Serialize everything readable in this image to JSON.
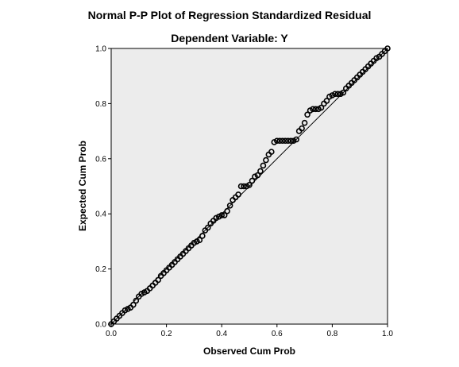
{
  "chart_data": {
    "type": "scatter",
    "title": "Normal P-P Plot of Regression Standardized Residual",
    "subtitle": "Dependent Variable: Y",
    "xlabel": "Observed Cum Prob",
    "ylabel": "Expected Cum Prob",
    "xlim": [
      0,
      1
    ],
    "ylim": [
      0,
      1
    ],
    "xticks": [
      "0.0",
      "0.2",
      "0.4",
      "0.6",
      "0.8",
      "1.0"
    ],
    "yticks": [
      "0.0",
      "0.2",
      "0.4",
      "0.6",
      "0.8",
      "1.0"
    ],
    "grid": false,
    "legend": "none",
    "colors": {
      "plot_background": "#ececec",
      "points": "#000000",
      "reference_line": "#000000"
    },
    "reference_line": {
      "from": [
        0,
        0
      ],
      "to": [
        1,
        1
      ]
    },
    "series": [
      {
        "points": [
          [
            0.0,
            0.0
          ],
          [
            0.01,
            0.01
          ],
          [
            0.02,
            0.02
          ],
          [
            0.03,
            0.03
          ],
          [
            0.04,
            0.04
          ],
          [
            0.05,
            0.05
          ],
          [
            0.06,
            0.055
          ],
          [
            0.07,
            0.06
          ],
          [
            0.08,
            0.07
          ],
          [
            0.09,
            0.085
          ],
          [
            0.1,
            0.1
          ],
          [
            0.11,
            0.11
          ],
          [
            0.12,
            0.115
          ],
          [
            0.13,
            0.12
          ],
          [
            0.14,
            0.13
          ],
          [
            0.15,
            0.14
          ],
          [
            0.16,
            0.15
          ],
          [
            0.17,
            0.16
          ],
          [
            0.18,
            0.175
          ],
          [
            0.19,
            0.185
          ],
          [
            0.2,
            0.195
          ],
          [
            0.21,
            0.205
          ],
          [
            0.22,
            0.215
          ],
          [
            0.23,
            0.225
          ],
          [
            0.24,
            0.235
          ],
          [
            0.25,
            0.245
          ],
          [
            0.26,
            0.255
          ],
          [
            0.27,
            0.265
          ],
          [
            0.28,
            0.275
          ],
          [
            0.29,
            0.285
          ],
          [
            0.3,
            0.295
          ],
          [
            0.31,
            0.3
          ],
          [
            0.32,
            0.305
          ],
          [
            0.33,
            0.32
          ],
          [
            0.34,
            0.34
          ],
          [
            0.35,
            0.35
          ],
          [
            0.36,
            0.365
          ],
          [
            0.37,
            0.375
          ],
          [
            0.38,
            0.385
          ],
          [
            0.39,
            0.39
          ],
          [
            0.4,
            0.395
          ],
          [
            0.41,
            0.395
          ],
          [
            0.42,
            0.41
          ],
          [
            0.43,
            0.43
          ],
          [
            0.44,
            0.45
          ],
          [
            0.45,
            0.46
          ],
          [
            0.46,
            0.47
          ],
          [
            0.47,
            0.5
          ],
          [
            0.48,
            0.5
          ],
          [
            0.49,
            0.5
          ],
          [
            0.5,
            0.505
          ],
          [
            0.51,
            0.52
          ],
          [
            0.52,
            0.535
          ],
          [
            0.53,
            0.54
          ],
          [
            0.54,
            0.555
          ],
          [
            0.55,
            0.575
          ],
          [
            0.56,
            0.595
          ],
          [
            0.57,
            0.615
          ],
          [
            0.58,
            0.625
          ],
          [
            0.59,
            0.66
          ],
          [
            0.6,
            0.665
          ],
          [
            0.61,
            0.665
          ],
          [
            0.62,
            0.665
          ],
          [
            0.63,
            0.665
          ],
          [
            0.64,
            0.665
          ],
          [
            0.65,
            0.665
          ],
          [
            0.66,
            0.665
          ],
          [
            0.67,
            0.67
          ],
          [
            0.68,
            0.7
          ],
          [
            0.69,
            0.71
          ],
          [
            0.7,
            0.73
          ],
          [
            0.71,
            0.76
          ],
          [
            0.72,
            0.775
          ],
          [
            0.73,
            0.78
          ],
          [
            0.74,
            0.78
          ],
          [
            0.75,
            0.78
          ],
          [
            0.76,
            0.785
          ],
          [
            0.77,
            0.8
          ],
          [
            0.78,
            0.81
          ],
          [
            0.79,
            0.825
          ],
          [
            0.8,
            0.83
          ],
          [
            0.81,
            0.835
          ],
          [
            0.82,
            0.835
          ],
          [
            0.83,
            0.835
          ],
          [
            0.84,
            0.84
          ],
          [
            0.85,
            0.855
          ],
          [
            0.86,
            0.865
          ],
          [
            0.87,
            0.875
          ],
          [
            0.88,
            0.885
          ],
          [
            0.89,
            0.895
          ],
          [
            0.9,
            0.905
          ],
          [
            0.91,
            0.915
          ],
          [
            0.92,
            0.925
          ],
          [
            0.93,
            0.935
          ],
          [
            0.94,
            0.945
          ],
          [
            0.95,
            0.955
          ],
          [
            0.96,
            0.965
          ],
          [
            0.97,
            0.97
          ],
          [
            0.98,
            0.98
          ],
          [
            0.99,
            0.99
          ],
          [
            1.0,
            1.0
          ]
        ]
      }
    ]
  }
}
